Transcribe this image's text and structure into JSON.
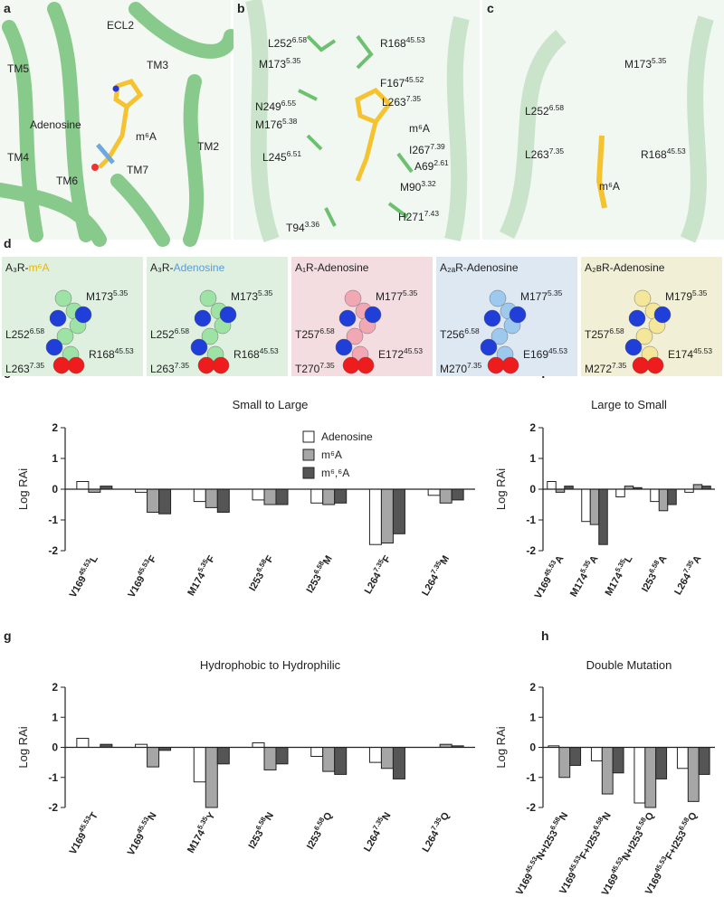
{
  "panel_labels": [
    "a",
    "b",
    "c",
    "d",
    "e",
    "f",
    "g",
    "h"
  ],
  "panel_a": {
    "labels": [
      "ECL2",
      "TM3",
      "TM5",
      "Adenosine",
      "m⁶A",
      "TM4",
      "TM2",
      "TM6",
      "TM7"
    ]
  },
  "panel_b": {
    "labels": [
      [
        "L252",
        "6.58"
      ],
      [
        "R168",
        "45.53"
      ],
      [
        "M173",
        "5.35"
      ],
      [
        "F167",
        "45.52"
      ],
      [
        "N249",
        "6.55"
      ],
      [
        "L263",
        "7.35"
      ],
      [
        "M176",
        "5.38"
      ],
      "m⁶A",
      [
        "I267",
        "7.39"
      ],
      [
        "L245",
        "6.51"
      ],
      [
        "A69",
        "2.61"
      ],
      [
        "M90",
        "3.32"
      ],
      [
        "H271",
        "7.43"
      ],
      [
        "T94",
        "3.36"
      ]
    ]
  },
  "panel_c": {
    "labels": [
      [
        "M173",
        "5.35"
      ],
      [
        "L252",
        "6.58"
      ],
      [
        "L263",
        "7.35"
      ],
      [
        "R168",
        "45.53"
      ],
      "m⁶A"
    ]
  },
  "panel_d": [
    {
      "receptor": "A₃R-",
      "ligand": "m⁶A",
      "labels": [
        [
          "M173",
          "5.35"
        ],
        [
          "L252",
          "6.58"
        ],
        [
          "R168",
          "45.53"
        ],
        [
          "L263",
          "7.35"
        ]
      ]
    },
    {
      "receptor": "A₃R-",
      "ligand": "Adenosine",
      "labels": [
        [
          "M173",
          "5.35"
        ],
        [
          "L252",
          "6.58"
        ],
        [
          "R168",
          "45.53"
        ],
        [
          "L263",
          "7.35"
        ]
      ]
    },
    {
      "receptor": "A₁R-Adenosine",
      "labels": [
        [
          "M177",
          "5.35"
        ],
        [
          "T257",
          "6.58"
        ],
        [
          "E172",
          "45.53"
        ],
        [
          "T270",
          "7.35"
        ]
      ]
    },
    {
      "receptor": "A₂ₐR-Adenosine",
      "labels": [
        [
          "M177",
          "5.35"
        ],
        [
          "T256",
          "6.58"
        ],
        [
          "E169",
          "45.53"
        ],
        [
          "M270",
          "7.35"
        ]
      ]
    },
    {
      "receptor": "A₂ʙR-Adenosine",
      "labels": [
        [
          "M179",
          "5.35"
        ],
        [
          "T257",
          "6.58"
        ],
        [
          "E174",
          "45.53"
        ],
        [
          "M272",
          "7.35"
        ]
      ]
    }
  ],
  "chart_data": [
    {
      "type": "bar",
      "title": "Small to Large",
      "y_label": "Log RAi",
      "legend": "top-right",
      "categories": [
        [
          "V169",
          "45.53",
          "L"
        ],
        [
          "V169",
          "45.53",
          "F"
        ],
        [
          "M174",
          "5.35",
          "F"
        ],
        [
          "I253",
          "6.58",
          "F"
        ],
        [
          "I253",
          "6.58",
          "M"
        ],
        [
          "L264",
          "7.35",
          "F"
        ],
        [
          "L264",
          "7.35",
          "M"
        ]
      ],
      "series": [
        {
          "name": "Adenosine",
          "color": "#ffffff",
          "values": [
            0.25,
            -0.1,
            -0.4,
            -0.35,
            -0.45,
            -1.8,
            -0.2
          ]
        },
        {
          "name": "m⁶A",
          "color": "#a6a6a6",
          "values": [
            -0.1,
            -0.75,
            -0.6,
            -0.5,
            -0.5,
            -1.75,
            -0.45
          ]
        },
        {
          "name": "m⁶,⁶A",
          "color": "#555555",
          "values": [
            0.1,
            -0.8,
            -0.75,
            -0.5,
            -0.45,
            -1.45,
            -0.35
          ]
        }
      ],
      "ylim": [
        -2,
        2
      ],
      "yticks": [
        -2,
        -1,
        0,
        1,
        2
      ]
    },
    {
      "type": "bar",
      "title": "Large to Small",
      "y_label": "Log RAi",
      "categories": [
        [
          "V169",
          "45.53",
          "A"
        ],
        [
          "M174",
          "5.35",
          "A"
        ],
        [
          "M174",
          "5.35",
          "L"
        ],
        [
          "I253",
          "6.58",
          "A"
        ],
        [
          "L264",
          "7.35",
          "A"
        ]
      ],
      "series": [
        {
          "color": "#ffffff",
          "values": [
            0.25,
            -1.05,
            -0.25,
            -0.4,
            -0.1
          ]
        },
        {
          "color": "#a6a6a6",
          "values": [
            -0.1,
            -1.15,
            0.1,
            -0.7,
            0.15
          ]
        },
        {
          "color": "#555555",
          "values": [
            0.1,
            -1.8,
            0.05,
            -0.5,
            0.1
          ]
        }
      ],
      "ylim": [
        -2,
        2
      ],
      "yticks": [
        -2,
        -1,
        0,
        1,
        2
      ]
    },
    {
      "type": "bar",
      "title": "Hydrophobic to Hydrophilic",
      "y_label": "Log RAi",
      "categories": [
        [
          "V169",
          "45.53",
          "T"
        ],
        [
          "V169",
          "45.53",
          "N"
        ],
        [
          "M174",
          "5.35",
          "Y"
        ],
        [
          "I253",
          "6.58",
          "N"
        ],
        [
          "I253",
          "6.58",
          "Q"
        ],
        [
          "L264",
          "7.35",
          "N"
        ],
        [
          "L264",
          "7.35",
          "Q"
        ]
      ],
      "series": [
        {
          "color": "#ffffff",
          "values": [
            0.3,
            0.1,
            -1.15,
            0.15,
            -0.3,
            -0.5,
            0
          ]
        },
        {
          "color": "#a6a6a6",
          "values": [
            0,
            -0.65,
            -2,
            -0.75,
            -0.8,
            -0.7,
            0.1
          ]
        },
        {
          "color": "#555555",
          "values": [
            0.1,
            -0.1,
            -0.55,
            -0.55,
            -0.9,
            -1.05,
            0.05
          ]
        }
      ],
      "ylim": [
        -2,
        2
      ],
      "yticks": [
        -2,
        -1,
        0,
        1,
        2
      ]
    },
    {
      "type": "bar",
      "title": "Double Mutation",
      "y_label": "Log RAi",
      "categories": [
        [
          "V169",
          "45.53",
          "N+I253",
          "6.58",
          "N"
        ],
        [
          "V169",
          "45.53",
          "F+I253",
          "6.58",
          "N"
        ],
        [
          "V169",
          "45.53",
          "N+I253",
          "6.58",
          "Q"
        ],
        [
          "V169",
          "45.53",
          "F+I253",
          "6.58",
          "Q"
        ]
      ],
      "series": [
        {
          "color": "#ffffff",
          "values": [
            0.05,
            -0.45,
            -1.85,
            -0.7
          ]
        },
        {
          "color": "#a6a6a6",
          "values": [
            -1.0,
            -1.55,
            -2,
            -1.8
          ]
        },
        {
          "color": "#555555",
          "values": [
            -0.6,
            -0.85,
            -1.05,
            -0.9
          ]
        }
      ],
      "ylim": [
        -2,
        2
      ],
      "yticks": [
        -2,
        -1,
        0,
        1,
        2
      ]
    }
  ]
}
